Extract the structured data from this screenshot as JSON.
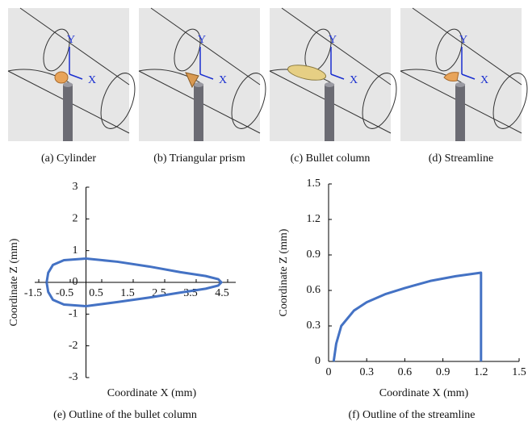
{
  "panels": [
    {
      "caption": "(a) Cylinder",
      "axis_y": "Y",
      "axis_x": "X"
    },
    {
      "caption": "(b) Triangular prism",
      "axis_y": "Y",
      "axis_x": "X"
    },
    {
      "caption": "(c) Bullet column",
      "axis_y": "Y",
      "axis_x": "X"
    },
    {
      "caption": "(d) Streamline",
      "axis_y": "Y",
      "axis_x": "X"
    }
  ],
  "chart_data": [
    {
      "type": "line",
      "caption": "(e) Outline of the bullet column",
      "xlabel": "Coordinate X (mm)",
      "ylabel": "Coordinate Z (mm)",
      "xlim": [
        -1.5,
        4.5
      ],
      "ylim": [
        -3,
        3
      ],
      "xticks": [
        -1.5,
        -0.5,
        0.5,
        1.5,
        2.5,
        3.5,
        4.5
      ],
      "yticks": [
        -3,
        -2,
        -1,
        0,
        1,
        2,
        3
      ],
      "series": [
        {
          "color": "#4472c4",
          "x": [
            -1.25,
            -1.2,
            -1.05,
            -0.7,
            0,
            1,
            2,
            3,
            3.8,
            4.2,
            4.3,
            4.2,
            3.8,
            3,
            2,
            1,
            0,
            -0.7,
            -1.05,
            -1.2,
            -1.25
          ],
          "values": [
            0,
            0.3,
            0.55,
            0.7,
            0.75,
            0.65,
            0.5,
            0.32,
            0.2,
            0.1,
            0,
            -0.1,
            -0.2,
            -0.32,
            -0.48,
            -0.62,
            -0.75,
            -0.7,
            -0.55,
            -0.3,
            0
          ]
        }
      ]
    },
    {
      "type": "line",
      "caption": "(f) Outline of the streamline",
      "xlabel": "Coordinate X (mm)",
      "ylabel": "Coordinate Z (mm)",
      "xlim": [
        0,
        1.5
      ],
      "ylim": [
        0,
        1.5
      ],
      "xticks": [
        0,
        0.3,
        0.6,
        0.9,
        1.2,
        1.5
      ],
      "yticks": [
        0,
        0.3,
        0.6,
        0.9,
        1.2,
        1.5
      ],
      "series": [
        {
          "color": "#4472c4",
          "x": [
            0.04,
            0.06,
            0.1,
            0.2,
            0.3,
            0.45,
            0.6,
            0.8,
            1.0,
            1.2,
            1.2
          ],
          "values": [
            0,
            0.15,
            0.3,
            0.43,
            0.5,
            0.57,
            0.62,
            0.68,
            0.72,
            0.75,
            0
          ]
        }
      ]
    }
  ]
}
